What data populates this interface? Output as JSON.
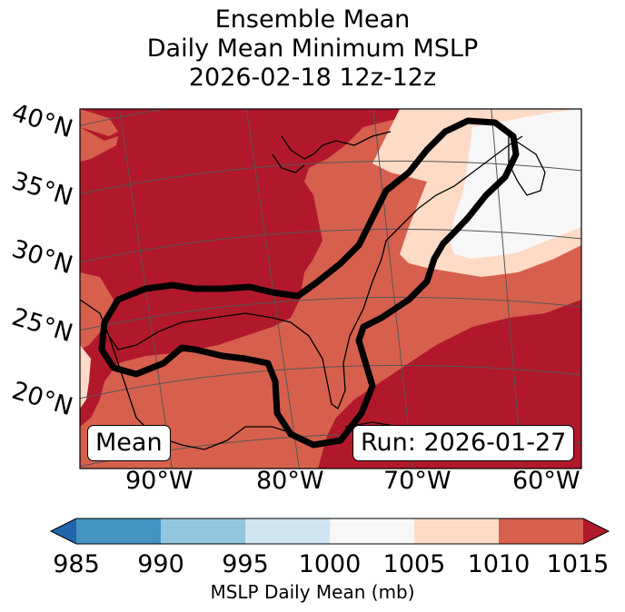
{
  "title": {
    "line1": "Ensemble Mean",
    "line2": "Daily Mean Minimum MSLP",
    "line3": "2026-02-18 12z-12z"
  },
  "map": {
    "lat_labels": [
      "40°N",
      "35°N",
      "30°N",
      "25°N",
      "20°N"
    ],
    "lon_labels": [
      "90°W",
      "80°W",
      "70°W",
      "60°W"
    ],
    "mean_label": "Mean",
    "run_label": "Run: 2026-01-27",
    "colors": {
      "band_1015_plus": "#b2182b",
      "band_1010_1015": "#d6604d",
      "band_1005_1010": "#fddbc7",
      "band_1000_1005": "#f7f7f7",
      "band_995_1000": "#d1e5f0",
      "band_990_995": "#92c5de",
      "band_985_990": "#4393c3",
      "band_below_985": "#2166ac",
      "contour": "#000000"
    }
  },
  "colorbar": {
    "label": "MSLP Daily Mean (mb)",
    "ticks": [
      "985",
      "990",
      "995",
      "1000",
      "1005",
      "1010",
      "1015"
    ]
  }
}
